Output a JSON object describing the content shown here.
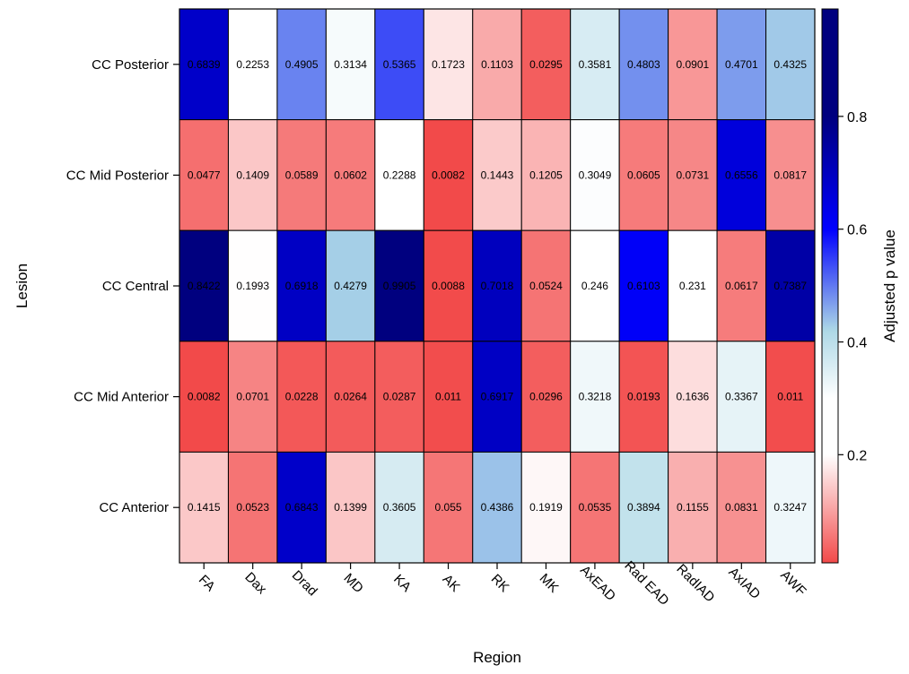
{
  "chart_data": {
    "type": "heatmap",
    "xlabel": "Region",
    "ylabel": "Lesion",
    "colorbar_label": "Adjusted p value",
    "colorbar_ticks": [
      0.2,
      0.4,
      0.6,
      0.8
    ],
    "colorbar_range": [
      0.0082,
      0.9905
    ],
    "colorscale": {
      "low": "#F24A4A",
      "mid": "#FFFFFF",
      "mid_value": 0.25,
      "light_blue": "#ADD8E6",
      "blue": "#0000FF",
      "high": "#00007F"
    },
    "columns": [
      "FA",
      "Dax",
      "Drad",
      "MD",
      "KA",
      "AK",
      "RK",
      "MK",
      "AxEAD",
      "Rad EAD",
      "RadIAD",
      "AxIAD",
      "AWF"
    ],
    "rows": [
      "CC Posterior",
      "CC Mid Posterior",
      "CC Central",
      "CC Mid Anterior",
      "CC Anterior"
    ],
    "values": [
      [
        0.6839,
        0.2253,
        0.4905,
        0.3134,
        0.5365,
        0.1723,
        0.1103,
        0.0295,
        0.3581,
        0.4803,
        0.0901,
        0.4701,
        0.4325
      ],
      [
        0.0477,
        0.1409,
        0.0589,
        0.0602,
        0.2288,
        0.0082,
        0.1443,
        0.1205,
        0.3049,
        0.0605,
        0.0731,
        0.6556,
        0.0817
      ],
      [
        0.8422,
        0.1993,
        0.6918,
        0.4279,
        0.9905,
        0.0088,
        0.7018,
        0.0524,
        0.246,
        0.6103,
        0.231,
        0.0617,
        0.7387
      ],
      [
        0.0082,
        0.0701,
        0.0228,
        0.0264,
        0.0287,
        0.011,
        0.6917,
        0.0296,
        0.3218,
        0.0193,
        0.1636,
        0.3367,
        0.011
      ],
      [
        0.1415,
        0.0523,
        0.6843,
        0.1399,
        0.3605,
        0.055,
        0.4386,
        0.1919,
        0.0535,
        0.3894,
        0.1155,
        0.0831,
        0.3247
      ]
    ],
    "cell_labels": [
      [
        "0.6839",
        "0.2253",
        "0.4905",
        "0.3134",
        "0.5365",
        "0.1723",
        "0.1103",
        "0.0295",
        "0.3581",
        "0.4803",
        "0.0901",
        "0.4701",
        "0.4325"
      ],
      [
        "0.0477",
        "0.1409",
        "0.0589",
        "0.0602",
        "0.2288",
        "0.0082",
        "0.1443",
        "0.1205",
        "0.3049",
        "0.0605",
        "0.0731",
        "0.6556",
        "0.0817"
      ],
      [
        "0.8422",
        "0.1993",
        "0.6918",
        "0.4279",
        "0.9905",
        "0.0088",
        "0.7018",
        "0.0524",
        "0.246",
        "0.6103",
        "0.231",
        "0.0617",
        "0.7387"
      ],
      [
        "0.0082",
        "0.0701",
        "0.0228",
        "0.0264",
        "0.0287",
        "0.011",
        "0.6917",
        "0.0296",
        "0.3218",
        "0.0193",
        "0.1636",
        "0.3367",
        "0.011"
      ],
      [
        "0.1415",
        "0.0523",
        "0.6843",
        "0.1399",
        "0.3605",
        "0.055",
        "0.4386",
        "0.1919",
        "0.0535",
        "0.3894",
        "0.1155",
        "0.0831",
        "0.3247"
      ]
    ]
  }
}
